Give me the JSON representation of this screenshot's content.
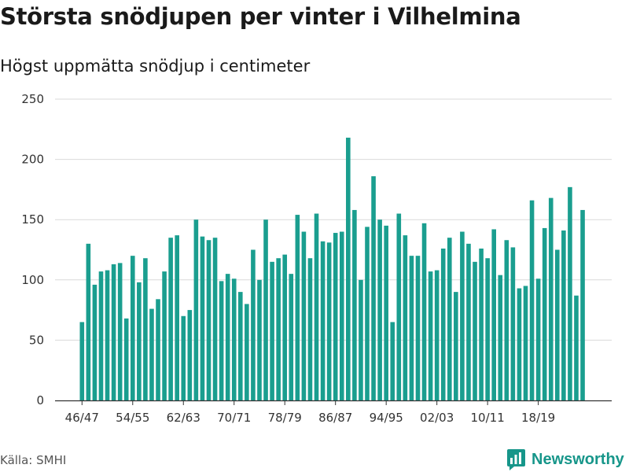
{
  "title": "Största snödjupen per vinter i Vilhelmina",
  "subtitle": "Högst uppmätta snödjup i centimeter",
  "source": "Källa: SMHI",
  "logo": {
    "text": "Newsworthy",
    "icon": "bar-chart-bubble-icon"
  },
  "colors": {
    "bar": "#1a9e8f",
    "grid": "#d9d9d9",
    "axis": "#333333"
  },
  "chart_data": {
    "type": "bar",
    "ylim": [
      0,
      250
    ],
    "yticks": [
      0,
      50,
      100,
      150,
      200,
      250
    ],
    "xtick_labels": [
      "46/47",
      "54/55",
      "62/63",
      "70/71",
      "78/79",
      "86/87",
      "94/95",
      "02/03",
      "10/11",
      "18/19"
    ],
    "xtick_indices": [
      0,
      8,
      16,
      24,
      32,
      40,
      48,
      56,
      64,
      72
    ],
    "grid": true,
    "series": [
      {
        "values": [
          65,
          130,
          96,
          107,
          108,
          113,
          114,
          68,
          120,
          98,
          118,
          76,
          84,
          107,
          135,
          137,
          70,
          75,
          150,
          136,
          133,
          135,
          99,
          105,
          101,
          90,
          80,
          125,
          100,
          150,
          115,
          118,
          121,
          105,
          154,
          140,
          118,
          155,
          132,
          131,
          139,
          140,
          218,
          158,
          100,
          144,
          186,
          150,
          145,
          65,
          155,
          137,
          120,
          120,
          147,
          107,
          108,
          126,
          135,
          90,
          140,
          130,
          115,
          126,
          118,
          142,
          104,
          133,
          127,
          93,
          95,
          166,
          101,
          143,
          168,
          125,
          141,
          177,
          87,
          158
        ]
      }
    ]
  }
}
